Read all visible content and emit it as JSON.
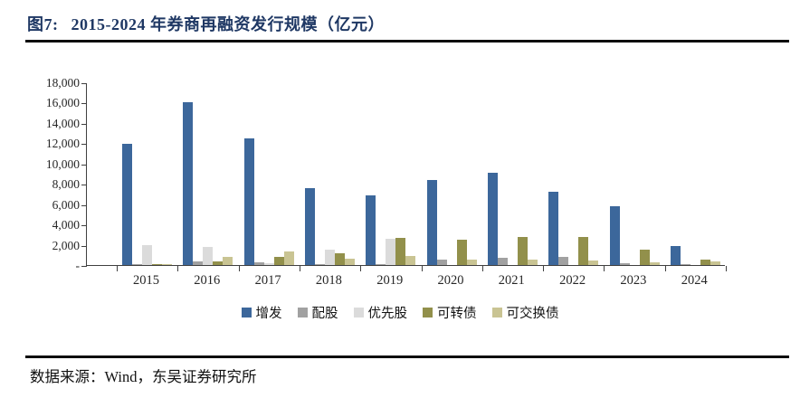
{
  "figure": {
    "label": "图7:",
    "title": "2015-2024 年券商再融资发行规模（亿元）",
    "title_color": "#1F3864"
  },
  "source": {
    "text": "数据来源：Wind，东吴证券研究所"
  },
  "chart_data": {
    "type": "bar",
    "title": "2015-2024 年券商再融资发行规模（亿元）",
    "unit": "亿元",
    "categories": [
      "2015",
      "2016",
      "2017",
      "2018",
      "2019",
      "2020",
      "2021",
      "2022",
      "2023",
      "2024"
    ],
    "series": [
      {
        "name": "增发",
        "color": "#3C679B",
        "values": [
          11900,
          16000,
          12500,
          7600,
          6900,
          8400,
          9100,
          7200,
          5800,
          1900
        ]
      },
      {
        "name": "配股",
        "color": "#A1A1A1",
        "values": [
          60,
          400,
          250,
          100,
          120,
          550,
          700,
          800,
          200,
          30
        ]
      },
      {
        "name": "优先股",
        "color": "#DBDBDB",
        "values": [
          2000,
          1750,
          200,
          1500,
          2600,
          0,
          0,
          0,
          0,
          0
        ]
      },
      {
        "name": "可转债",
        "color": "#92904B",
        "values": [
          100,
          400,
          800,
          1200,
          2700,
          2500,
          2800,
          2800,
          1500,
          550
        ]
      },
      {
        "name": "可交换债",
        "color": "#C9C493",
        "values": [
          60,
          800,
          1300,
          600,
          900,
          500,
          500,
          450,
          300,
          350
        ]
      }
    ],
    "ylim": [
      0,
      18000
    ],
    "ytick_interval": 2000,
    "ytick_labels": [
      "18,000",
      "16,000",
      "14,000",
      "12,000",
      "10,000",
      "8,000",
      "6,000",
      "4,000",
      "2,000",
      "-"
    ],
    "xlabel": "",
    "ylabel": "",
    "grid": false,
    "legend_position": "bottom"
  }
}
